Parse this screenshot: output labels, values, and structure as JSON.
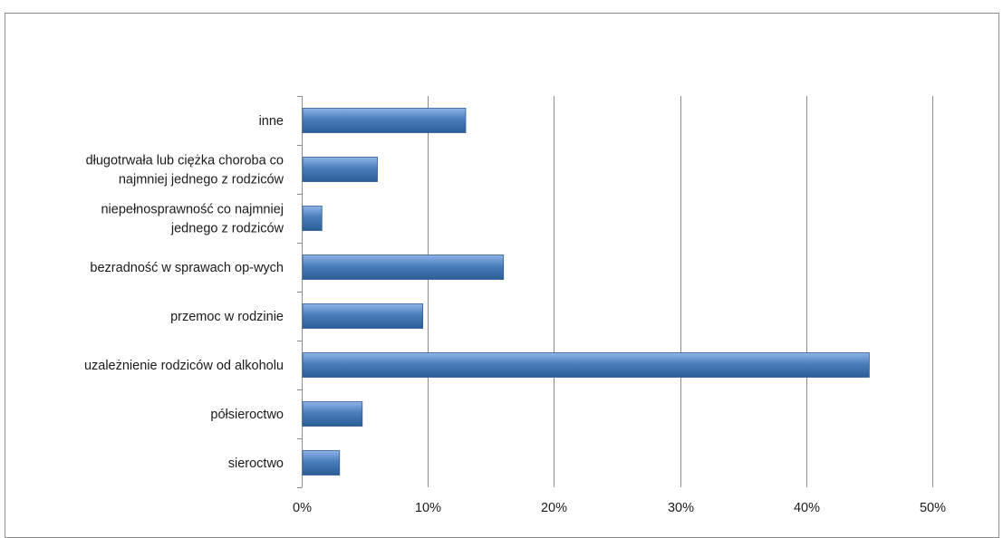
{
  "chart_data": {
    "type": "bar",
    "orientation": "horizontal",
    "categories": [
      "inne",
      "długotrwała lub ciężka choroba co najmniej jednego z rodziców",
      "niepełnosprawność co najmniej jednego z rodziców",
      "bezradność w sprawach op-wych",
      "przemoc w rodzinie",
      "uzależnienie rodziców od alkoholu",
      "półsieroctwo",
      "sieroctwo"
    ],
    "category_lines": [
      [
        "inne"
      ],
      [
        "długotrwała lub ciężka choroba co",
        "najmniej jednego z rodziców"
      ],
      [
        "niepełnosprawność co najmniej",
        "jednego z rodziców"
      ],
      [
        "bezradność w sprawach op-wych"
      ],
      [
        "przemoc w rodzinie"
      ],
      [
        "uzależnienie rodziców od alkoholu"
      ],
      [
        "półsieroctwo"
      ],
      [
        "sieroctwo"
      ]
    ],
    "values": [
      13,
      6,
      1.6,
      16,
      9.6,
      45,
      4.8,
      3
    ],
    "xlim": [
      0,
      50
    ],
    "x_ticks": [
      "0%",
      "10%",
      "20%",
      "30%",
      "40%",
      "50%"
    ],
    "x_tick_values": [
      0,
      10,
      20,
      30,
      40,
      50
    ],
    "grid": true,
    "legend": "none",
    "bar_color": "#4a7ebb",
    "bar_color_light": "#8fb4e8",
    "bar_color_dark": "#2c5d96",
    "grid_color": "#8c8c8c"
  }
}
